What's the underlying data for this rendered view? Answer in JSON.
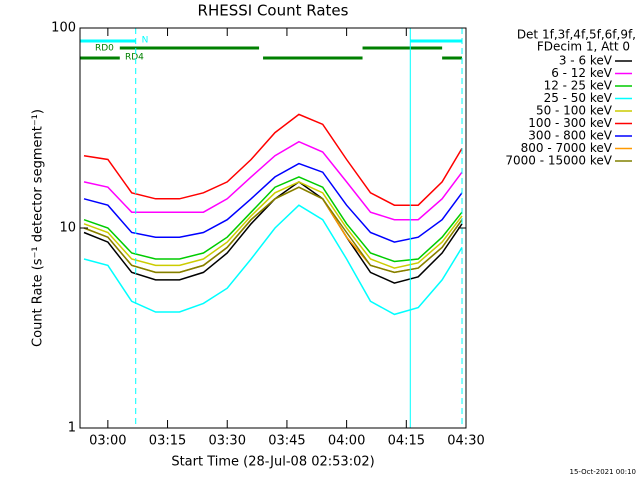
{
  "chart_data": {
    "type": "line",
    "title": "RHESSI Count Rates",
    "x_label": "Start Time (28-Jul-08 02:53:02)",
    "y_label": "Count Rate (s⁻¹ detector segment⁻¹)",
    "legend_header": [
      "Det 1f,3f,4f,5f,6f,9f,",
      "FDecim 1, Att 0"
    ],
    "footnote": "15-Oct-2021 00:10",
    "log_y": true,
    "xlim": [
      "02:53",
      "04:30"
    ],
    "xticks": [
      "03:00",
      "03:15",
      "03:30",
      "03:45",
      "04:00",
      "04:15",
      "04:30"
    ],
    "ylim": [
      1,
      100
    ],
    "yticks": [
      1,
      10,
      100
    ],
    "x": [
      "02:54",
      "03:00",
      "03:06",
      "03:12",
      "03:18",
      "03:24",
      "03:30",
      "03:36",
      "03:42",
      "03:48",
      "03:54",
      "04:00",
      "04:06",
      "04:12",
      "04:18",
      "04:24",
      "04:29"
    ],
    "series": [
      {
        "name": "3 - 6 keV",
        "color": "#000000",
        "values": [
          9.5,
          8.5,
          6,
          5.5,
          5.5,
          6,
          7.5,
          10.5,
          14,
          17,
          14,
          9,
          6,
          5.3,
          5.7,
          7.5,
          10.5
        ]
      },
      {
        "name": "6 - 12 keV",
        "color": "#ff00ff",
        "values": [
          17,
          16,
          12,
          12,
          12,
          12,
          14,
          18,
          23,
          27,
          24,
          17,
          12,
          11,
          11,
          14,
          19
        ]
      },
      {
        "name": "12 - 25 keV",
        "color": "#00cc00",
        "values": [
          11,
          10,
          7.5,
          7,
          7,
          7.5,
          9,
          12,
          16,
          18,
          16,
          10.5,
          7.5,
          6.8,
          7,
          9,
          12
        ]
      },
      {
        "name": "25 - 50 keV",
        "color": "#00ffff",
        "values": [
          7,
          6.5,
          4.3,
          3.8,
          3.8,
          4.2,
          5,
          7,
          10,
          13,
          11,
          7,
          4.3,
          3.7,
          4,
          5.5,
          8
        ]
      },
      {
        "name": "50 - 100 keV",
        "color": "#cccc00",
        "values": [
          10.5,
          9.5,
          7,
          6.5,
          6.5,
          7,
          8.5,
          11.5,
          15,
          17,
          15,
          10,
          7,
          6.3,
          6.7,
          8.5,
          11.5
        ]
      },
      {
        "name": "100 - 300 keV",
        "color": "#ff0000",
        "values": [
          23,
          22,
          15,
          14,
          14,
          15,
          17,
          22,
          30,
          37,
          33,
          22,
          15,
          13,
          13,
          17,
          25
        ]
      },
      {
        "name": "300 - 800 keV",
        "color": "#0000ff",
        "values": [
          14,
          13,
          9.5,
          9,
          9,
          9.5,
          11,
          14,
          18,
          21,
          19,
          13,
          9.5,
          8.5,
          9,
          11,
          15
        ]
      },
      {
        "name": "800 - 7000 keV",
        "color": "#ff9900",
        "values": [
          10,
          9,
          6.5,
          6,
          6,
          6.5,
          8,
          11,
          14,
          16,
          14,
          9,
          6.5,
          6,
          6.3,
          8,
          11
        ]
      },
      {
        "name": "7000 - 15000 keV",
        "color": "#808000",
        "values": [
          10,
          9,
          6.5,
          6,
          6,
          6.5,
          8,
          11,
          14,
          16,
          14,
          9.5,
          6.5,
          6,
          6.3,
          8,
          11
        ]
      }
    ],
    "flags": [
      {
        "label": "N",
        "color": "#00ffff",
        "spans": [
          [
            "02:53",
            "03:07"
          ],
          [
            "04:16",
            "04:29"
          ]
        ]
      },
      {
        "label": "RD0",
        "color": "#008000",
        "spans": [
          [
            "03:03",
            "03:38"
          ],
          [
            "04:04",
            "04:24"
          ]
        ]
      },
      {
        "label": "RD4",
        "color": "#008000",
        "spans": [
          [
            "02:53",
            "03:03"
          ],
          [
            "03:39",
            "04:04"
          ],
          [
            "04:24",
            "04:29"
          ]
        ]
      }
    ],
    "markers": [
      {
        "time": "02:53",
        "style": "solid",
        "color": "#00ffff"
      },
      {
        "time": "03:07",
        "style": "dashed",
        "color": "#00ffff"
      },
      {
        "time": "04:16",
        "style": "solid",
        "color": "#00ffff"
      },
      {
        "time": "04:29",
        "style": "dashed",
        "color": "#00ffff"
      }
    ]
  }
}
